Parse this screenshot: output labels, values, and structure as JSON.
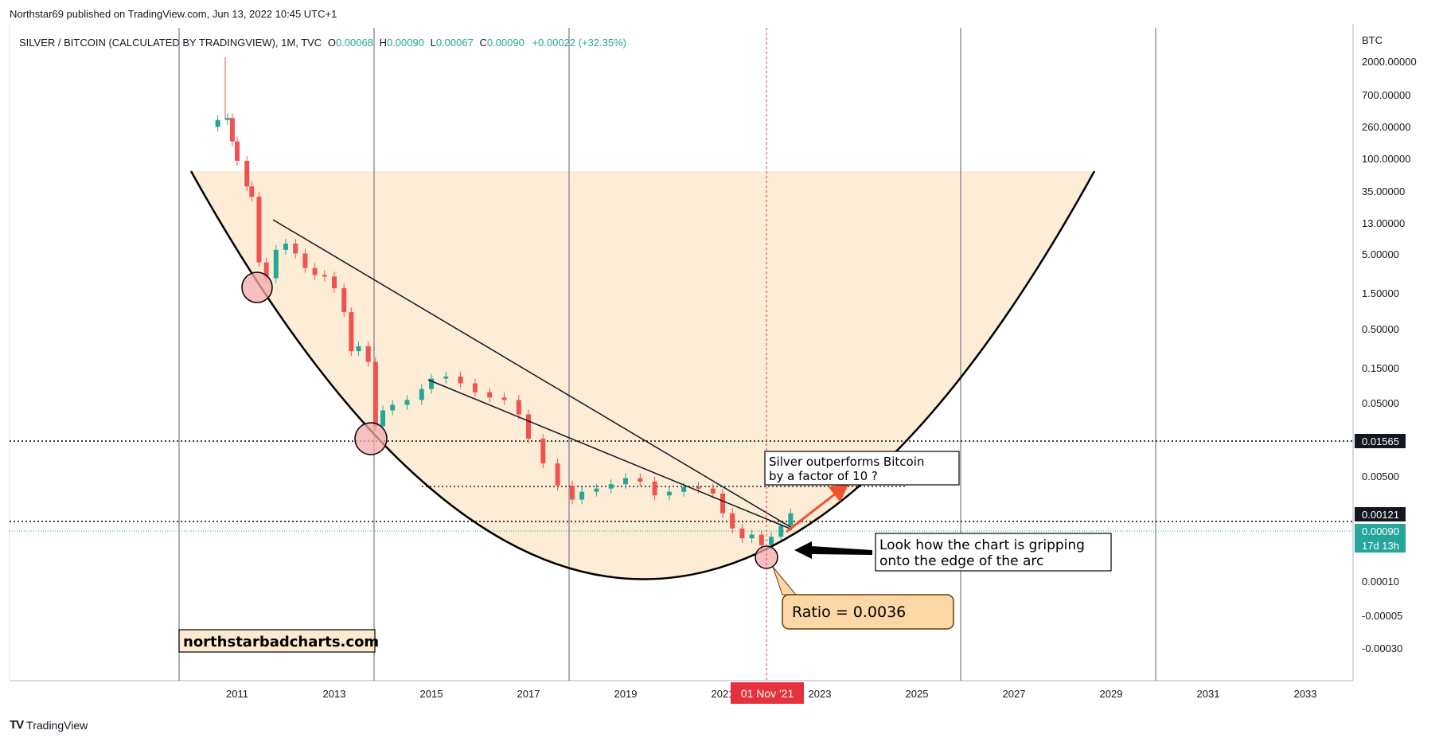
{
  "header": {
    "published": "Northstar69 published on TradingView.com, Jun 13, 2022 10:45 UTC+1"
  },
  "legend": {
    "symbol": "SILVER / BITCOIN (CALCULATED BY TRADINGVIEW), 1M, TVC",
    "o_label": "O",
    "o": "0.00068",
    "h_label": "H",
    "h": "0.00090",
    "l_label": "L",
    "l": "0.00067",
    "c_label": "C",
    "c": "0.00090",
    "change": "+0.00022 (+32.35%)"
  },
  "colors": {
    "up": "#26a69a",
    "down": "#ef5350",
    "arc_fill": "#fde9cf",
    "arrow_orange": "#f0532c",
    "label_green": "#26a69a",
    "label_dark": "#131722",
    "crosshair_red": "#e5323e"
  },
  "chart_data": {
    "type": "line",
    "title": "SILVER / BITCOIN (CALCULATED BY TRADINGVIEW), 1M, TVC",
    "ylabel": "BTC",
    "y_scale": "log",
    "y_ticks": [
      "2000.00000",
      "700.00000",
      "260.00000",
      "100.00000",
      "35.00000",
      "13.00000",
      "5.00000",
      "1.50000",
      "0.50000",
      "0.15000",
      "0.05000",
      "0.00500",
      "0.00010",
      "-0.00005",
      "-0.00030"
    ],
    "x_ticks": [
      "2011",
      "2013",
      "2015",
      "2017",
      "2019",
      "2021",
      "2023",
      "2025",
      "2027",
      "2029",
      "2031",
      "2033"
    ],
    "price_labels": [
      {
        "text": "0.01565",
        "style": "dark"
      },
      {
        "text": "0.00121",
        "style": "dark"
      },
      {
        "text": "0.00090",
        "style": "green"
      },
      {
        "text": "17d 13h",
        "style": "green"
      }
    ],
    "crosshair_date": "01 Nov '21",
    "x": [
      2010.6,
      2010.8,
      2010.9,
      2011.0,
      2011.2,
      2011.3,
      2011.45,
      2011.6,
      2011.8,
      2012.0,
      2012.2,
      2012.4,
      2012.6,
      2012.8,
      2013.0,
      2013.2,
      2013.35,
      2013.5,
      2013.7,
      2013.85,
      2014.0,
      2014.2,
      2014.5,
      2014.8,
      2015.0,
      2015.3,
      2015.6,
      2015.9,
      2016.2,
      2016.5,
      2016.8,
      2017.0,
      2017.3,
      2017.6,
      2017.9,
      2018.1,
      2018.4,
      2018.7,
      2019.0,
      2019.3,
      2019.6,
      2019.9,
      2020.2,
      2020.5,
      2020.8,
      2021.0,
      2021.2,
      2021.4,
      2021.6,
      2021.8,
      2022.0,
      2022.2,
      2022.4
    ],
    "values": [
      300,
      320,
      150,
      80,
      35,
      25,
      3,
      1.8,
      4.5,
      5.5,
      4.0,
      2.5,
      2.0,
      1.9,
      1.3,
      0.6,
      0.17,
      0.2,
      0.12,
      0.015,
      0.025,
      0.03,
      0.035,
      0.05,
      0.07,
      0.075,
      0.06,
      0.045,
      0.038,
      0.035,
      0.022,
      0.01,
      0.0045,
      0.0022,
      0.0014,
      0.0018,
      0.002,
      0.0023,
      0.0028,
      0.0025,
      0.0016,
      0.0018,
      0.0021,
      0.002,
      0.0017,
      0.0009,
      0.00055,
      0.0004,
      0.00045,
      0.00032,
      0.00042,
      0.0006,
      0.0009
    ],
    "overlays": {
      "horizontal_lines": [
        0.01565,
        0.00121,
        0.0036
      ],
      "vertical_lines_years": [
        2010.0,
        2013.9,
        2017.9,
        2021.83,
        2025.9,
        2029.9
      ]
    }
  },
  "annotations": {
    "silver_box": "Silver outperforms Bitcoin\nby a factor of 10 ?",
    "silver_line1": "Silver outperforms Bitcoin",
    "silver_line2": "by a factor of 10 ?",
    "grip_line1": "Look how the chart is gripping",
    "grip_line2": "onto the edge of the arc",
    "ratio": "Ratio = 0.0036",
    "website": "northstarbadcharts.com"
  },
  "footer": {
    "brand": "TradingView",
    "logo": "TV"
  }
}
